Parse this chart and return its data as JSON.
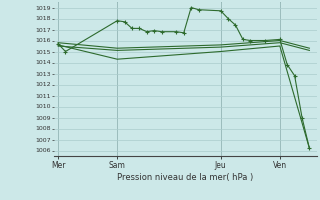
{
  "title": "Pression niveau de la mer( hPa )",
  "bg_color": "#cce8e8",
  "grid_color": "#aacccc",
  "line_color": "#2d6a2d",
  "ylim": [
    1005.5,
    1019.5
  ],
  "ytick_min": 1006,
  "ytick_max": 1019,
  "day_labels": [
    "Mer",
    "Sam",
    "Jeu",
    "Ven"
  ],
  "day_positions": [
    0,
    8,
    22,
    30
  ],
  "xlim": [
    -0.5,
    35
  ],
  "series1_x": [
    0,
    1,
    8,
    9,
    10,
    11,
    12,
    13,
    14,
    16,
    17,
    18,
    19,
    22,
    23,
    24,
    25,
    26,
    28,
    30,
    31,
    32,
    33,
    34
  ],
  "series1_y": [
    1015.7,
    1015.0,
    1017.8,
    1017.7,
    1017.1,
    1017.1,
    1016.8,
    1016.9,
    1016.8,
    1016.8,
    1016.7,
    1019.0,
    1018.8,
    1018.7,
    1018.0,
    1017.4,
    1016.1,
    1016.0,
    1016.0,
    1016.1,
    1013.8,
    1012.8,
    1009.0,
    1006.2
  ],
  "series2_x": [
    0,
    8,
    22,
    30,
    34
  ],
  "series2_y": [
    1015.8,
    1015.3,
    1015.6,
    1016.0,
    1015.3
  ],
  "series3_x": [
    0,
    8,
    22,
    30,
    34
  ],
  "series3_y": [
    1015.5,
    1015.1,
    1015.4,
    1015.8,
    1015.1
  ],
  "series4_x": [
    0,
    8,
    22,
    30,
    34
  ],
  "series4_y": [
    1015.6,
    1014.3,
    1015.0,
    1015.5,
    1006.2
  ],
  "vline_positions": [
    0,
    8,
    22,
    30
  ]
}
